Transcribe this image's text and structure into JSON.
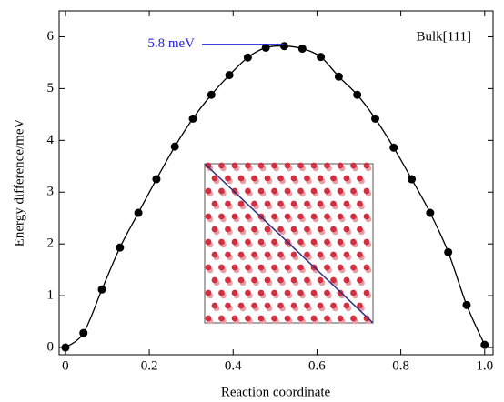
{
  "chart_data": {
    "type": "line",
    "x_label": "Reaction coordinate",
    "y_label": "Energy difference/meV",
    "annotations": [
      "5.8 meV",
      "Bulk[111]"
    ],
    "x": [
      0,
      0.043,
      0.087,
      0.13,
      0.174,
      0.217,
      0.261,
      0.304,
      0.348,
      0.391,
      0.435,
      0.478,
      0.522,
      0.565,
      0.609,
      0.652,
      0.696,
      0.739,
      0.783,
      0.826,
      0.87,
      0.913,
      0.957,
      1
    ],
    "series": [
      {
        "name": "Bulk[111]",
        "color": "#000000",
        "values": [
          0,
          0.28,
          1.12,
          1.93,
          2.6,
          3.25,
          3.88,
          4.42,
          4.88,
          5.26,
          5.6,
          5.79,
          5.82,
          5.77,
          5.61,
          5.23,
          4.88,
          4.42,
          3.86,
          3.25,
          2.6,
          1.84,
          0.82,
          0.05
        ]
      }
    ],
    "annotation_color": "#2020e0",
    "xlim": [
      -0.015,
      1.02
    ],
    "ylim": [
      -0.14,
      6.5
    ],
    "xticks": [
      0,
      0.2,
      0.4,
      0.6,
      0.8,
      {
        "value": 1,
        "label": "1.0"
      }
    ],
    "yticks": [
      0,
      1,
      2,
      3,
      4,
      5,
      6
    ]
  }
}
